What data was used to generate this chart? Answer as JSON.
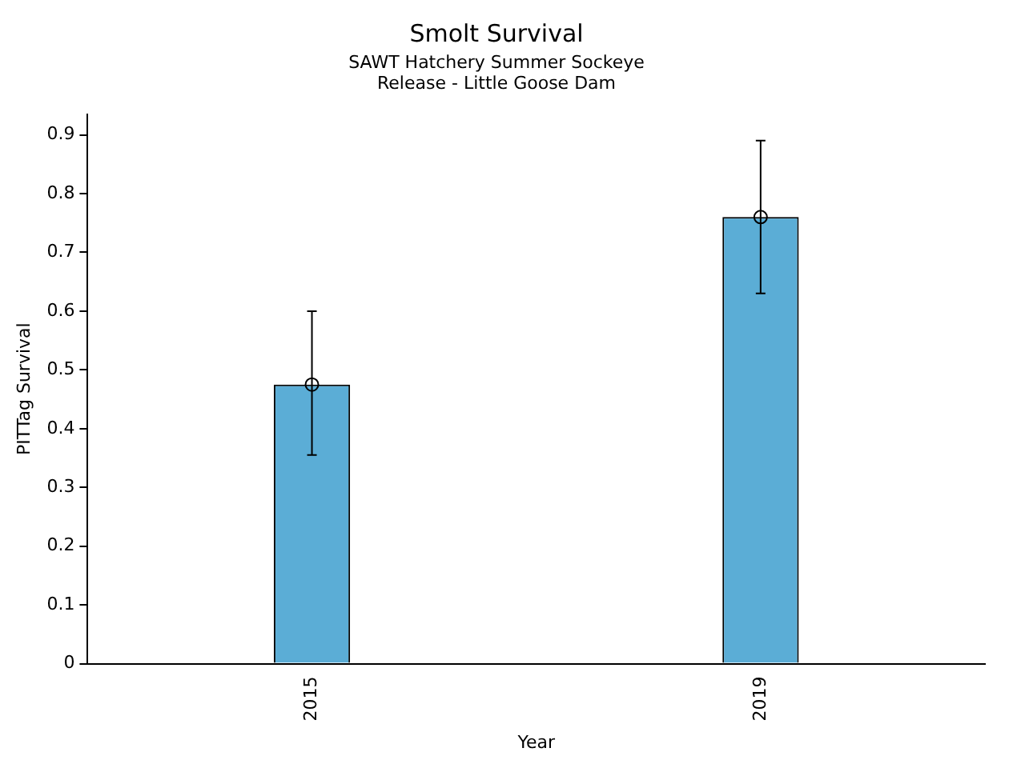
{
  "chart_data": {
    "type": "bar",
    "title": "Smolt Survival",
    "subtitle": "SAWT Hatchery Summer Sockeye\nRelease - Little Goose Dam",
    "xlabel": "Year",
    "ylabel": "PITTag Survival",
    "categories": [
      "2015",
      "2019"
    ],
    "series": [
      {
        "color": "#5badd6",
        "values": [
          0.475,
          0.76
        ],
        "errors": [
          [
            0.355,
            0.6
          ],
          [
            0.63,
            0.89
          ]
        ]
      },
      {
        "type": "scatter",
        "color": "#000000",
        "values": [
          0.475,
          0.76
        ],
        "marker": "circle"
      }
    ],
    "ylim": [
      0,
      0.935
    ],
    "yticks": [
      0,
      0.1,
      0.2,
      0.3,
      0.4,
      0.5,
      0.6,
      0.7,
      0.8,
      0.9
    ],
    "grid": false,
    "legend": false
  }
}
